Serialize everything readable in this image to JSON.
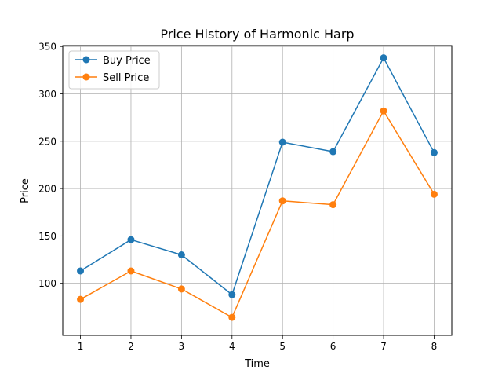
{
  "chart_data": {
    "type": "line",
    "title": "Price History of Harmonic Harp",
    "xlabel": "Time",
    "ylabel": "Price",
    "x": [
      1,
      2,
      3,
      4,
      5,
      6,
      7,
      8
    ],
    "xlim": [
      0.65,
      8.35
    ],
    "ylim": [
      45,
      351
    ],
    "xticks": [
      1,
      2,
      3,
      4,
      5,
      6,
      7,
      8
    ],
    "yticks": [
      100,
      150,
      200,
      250,
      300,
      350
    ],
    "grid": true,
    "legend_position": "upper left",
    "series": [
      {
        "name": "Buy Price",
        "color": "#1f77b4",
        "values": [
          113,
          146,
          130,
          88,
          249,
          239,
          338,
          238
        ]
      },
      {
        "name": "Sell Price",
        "color": "#ff7f0e",
        "values": [
          83,
          113,
          94,
          64,
          187,
          183,
          282,
          194
        ]
      }
    ]
  }
}
